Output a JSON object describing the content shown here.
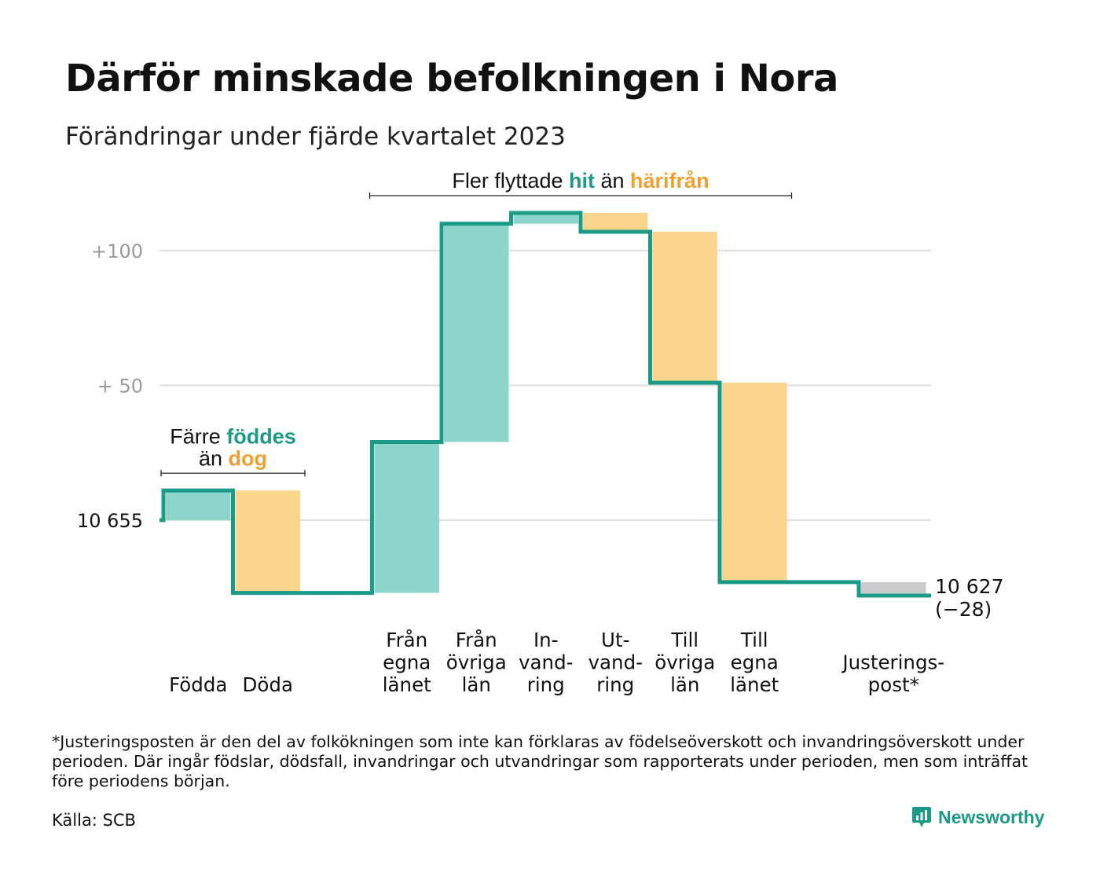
{
  "title": "Därför minskade befolkningen i Nora",
  "subtitle": "Förändringar under fjärde kvartalet 2023",
  "footnote": "*Justeringsposten är den del av folkökningen som inte kan förklaras av födelseöverskott och invandringsöverskott under perioden. Där ingår födslar, dödsfall, invandringar och utvandringar som rapporterats under perioden, men som inträffat före periodens början.",
  "source": "Källa: SCB",
  "brand": {
    "name": "Newsworthy",
    "icon": "bar-chart-speech-bubble-icon"
  },
  "colors": {
    "increase": "#8dd4ca",
    "decrease": "#fad58c",
    "adjustment": "#cccccc",
    "line": "#1b9a87",
    "teal_text": "#1b9a87",
    "orange_text": "#f0a030",
    "grid": "#e2e2e2"
  },
  "chart_data": {
    "type": "waterfall",
    "start_value": 10655,
    "end_label": "10 627",
    "end_change_label": "(−28)",
    "ylim": [
      10626,
      10668
    ],
    "yticks": [
      {
        "value": 10655,
        "label": "10  655"
      },
      {
        "value": 10705,
        "label": "+  50"
      },
      {
        "value": 10755,
        "label": "+100"
      }
    ],
    "grid": true,
    "groups": [
      {
        "steps": [
          {
            "label": [
              "Födda"
            ],
            "value": 11,
            "kind": "increase"
          },
          {
            "label": [
              "Döda"
            ],
            "value": -38,
            "kind": "decrease"
          }
        ],
        "annotation": {
          "lines": [
            [
              {
                "text": "Färre ",
                "color": "dark"
              },
              {
                "text": "föddes",
                "color": "teal"
              }
            ],
            [
              {
                "text": "än ",
                "color": "dark"
              },
              {
                "text": "dog",
                "color": "orange"
              }
            ]
          ]
        }
      },
      {
        "steps": [
          {
            "label": [
              "Från",
              "egna",
              "länet"
            ],
            "value": 56,
            "kind": "increase"
          },
          {
            "label": [
              "Från",
              "övriga",
              "län"
            ],
            "value": 81,
            "kind": "increase"
          },
          {
            "label": [
              "In-",
              "vand-",
              "ring"
            ],
            "value": 4,
            "kind": "increase"
          },
          {
            "label": [
              "Ut-",
              "vand-",
              "ring"
            ],
            "value": -7,
            "kind": "decrease"
          },
          {
            "label": [
              "Till",
              "övriga",
              "län"
            ],
            "value": -56,
            "kind": "decrease"
          },
          {
            "label": [
              "Till",
              "egna",
              "länet"
            ],
            "value": -74,
            "kind": "decrease"
          }
        ],
        "annotation": {
          "lines": [
            [
              {
                "text": "Fler flyttade ",
                "color": "dark"
              },
              {
                "text": "hit",
                "color": "teal"
              },
              {
                "text": " än ",
                "color": "dark"
              },
              {
                "text": "härifrån",
                "color": "orange"
              }
            ]
          ]
        }
      },
      {
        "steps": [
          {
            "label": [
              "Justerings-",
              "post*"
            ],
            "value": -5,
            "kind": "adjustment"
          }
        ]
      }
    ]
  }
}
